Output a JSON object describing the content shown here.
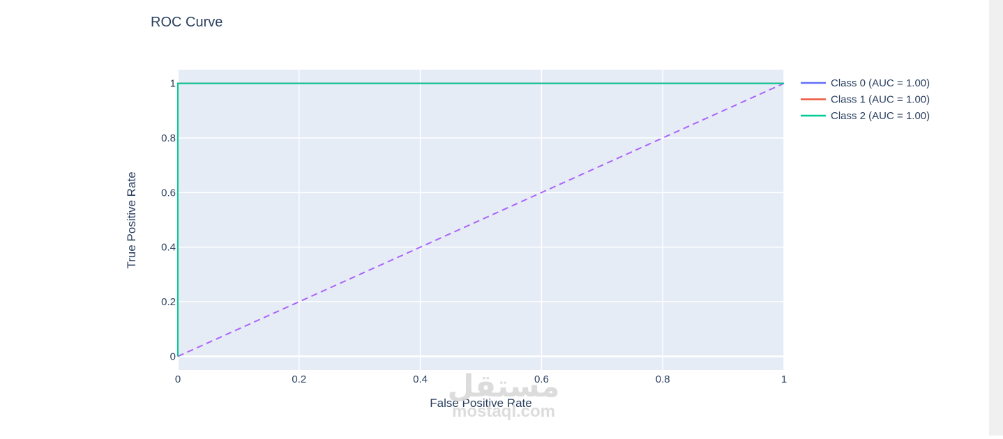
{
  "chart_data": {
    "type": "line",
    "title": "ROC Curve",
    "xlabel": "False Positive Rate",
    "ylabel": "True Positive Rate",
    "xlim": [
      0,
      1
    ],
    "ylim": [
      -0.05,
      1.05
    ],
    "x_ticks": [
      0,
      0.2,
      0.4,
      0.6,
      0.8,
      1
    ],
    "x_tick_labels": [
      "0",
      "0.2",
      "0.4",
      "0.6",
      "0.8",
      "1"
    ],
    "y_ticks": [
      0,
      0.2,
      0.4,
      0.6,
      0.8,
      1
    ],
    "y_tick_labels": [
      "0",
      "0.2",
      "0.4",
      "0.6",
      "0.8",
      "1"
    ],
    "grid": true,
    "legend_position": "right",
    "series": [
      {
        "name": "Class 0 (AUC = 1.00)",
        "color": "#636efa",
        "x": [
          0,
          0,
          1
        ],
        "y": [
          0,
          1,
          1
        ]
      },
      {
        "name": "Class 1 (AUC = 1.00)",
        "color": "#ef553b",
        "x": [
          0,
          0,
          1
        ],
        "y": [
          0,
          1,
          1
        ]
      },
      {
        "name": "Class 2 (AUC = 1.00)",
        "color": "#00cc96",
        "x": [
          0,
          0,
          1
        ],
        "y": [
          0,
          1,
          1
        ]
      }
    ],
    "reference_line": {
      "x": [
        0,
        1
      ],
      "y": [
        0,
        1
      ],
      "color": "#ab63fa",
      "style": "dashed"
    }
  },
  "watermark": {
    "arabic": "مستقل",
    "latin": "mostaql.com"
  }
}
